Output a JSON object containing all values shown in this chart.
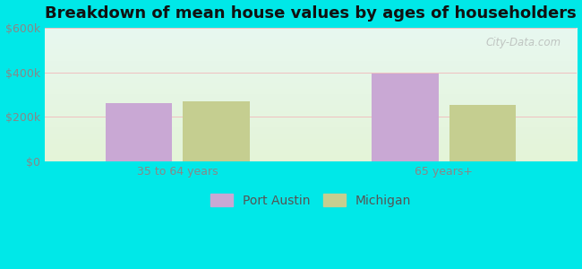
{
  "title": "Breakdown of mean house values by ages of householders",
  "categories": [
    "35 to 64 years",
    "65 years+"
  ],
  "port_austin_values": [
    262000,
    393000
  ],
  "michigan_values": [
    270000,
    255000
  ],
  "port_austin_color": "#c9a8d4",
  "michigan_color": "#c5ce90",
  "bar_width": 0.25,
  "ylim": [
    0,
    600000
  ],
  "yticks": [
    0,
    200000,
    400000,
    600000
  ],
  "ytick_labels": [
    "$0",
    "$200k",
    "$400k",
    "$600k"
  ],
  "legend_port_austin": "Port Austin",
  "legend_michigan": "Michigan",
  "background_outer": "#00e8e8",
  "background_inner_top": "#e8f8f0",
  "background_inner_bottom": "#e4f4d8",
  "title_fontsize": 13,
  "axis_label_fontsize": 9,
  "legend_fontsize": 10,
  "watermark_text": "City-Data.com"
}
